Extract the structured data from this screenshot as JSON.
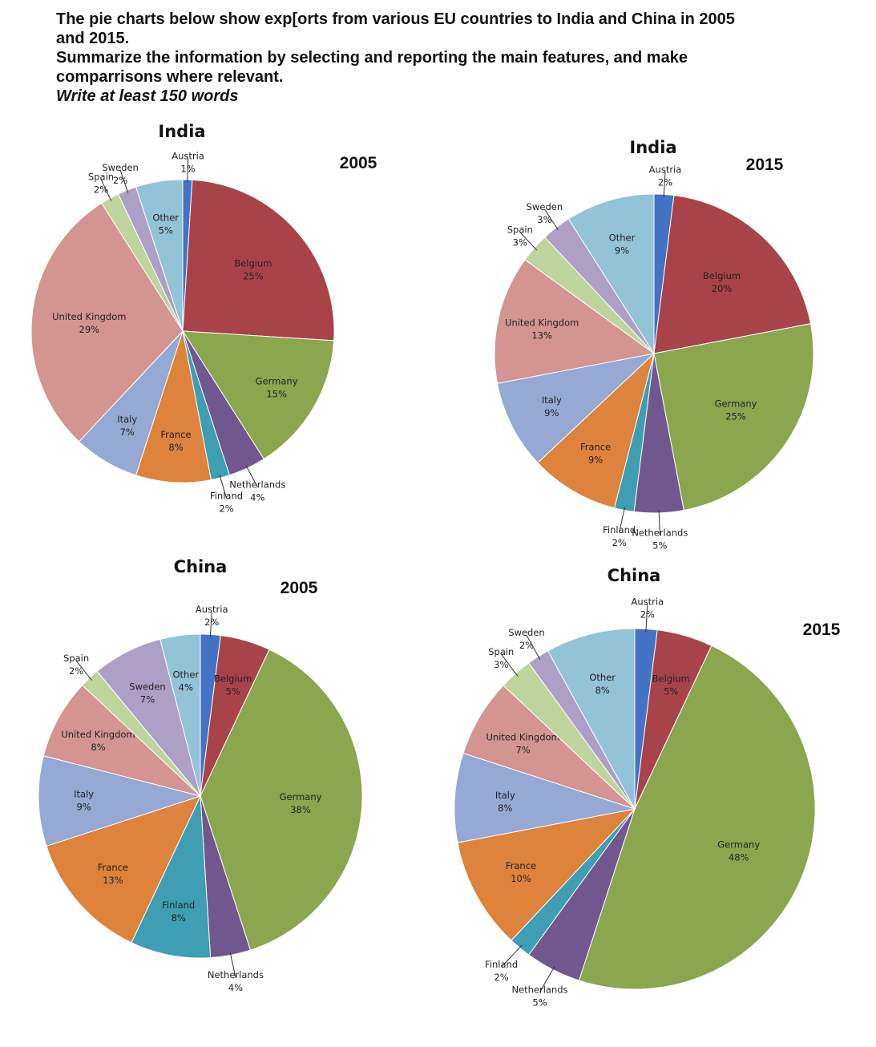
{
  "prompt": {
    "line1": "The pie charts below show exp[orts from various EU countries to India and China in 2005",
    "line2": "and 2015.",
    "line3": "Summarize the information by selecting and reporting the main features, and make",
    "line4": "comparrisons where relevant.",
    "line5": "Write at least 150 words"
  },
  "colors": {
    "Austria": "#4472C4",
    "Belgium": "#A9434A",
    "Germany": "#8BA64F",
    "Netherlands": "#71578F",
    "Finland": "#3F9DB4",
    "France": "#DD833C",
    "Italy": "#95A9D4",
    "United Kingdom": "#D49492",
    "Spain": "#BFD49D",
    "Sweden": "#AE9FC7",
    "Other": "#93C3D6"
  },
  "chart_data": [
    {
      "type": "pie",
      "title": "India",
      "year": "2005",
      "slices": [
        {
          "label": "Austria",
          "value": 1,
          "text": "1%"
        },
        {
          "label": "Belgium",
          "value": 25,
          "text": "25%"
        },
        {
          "label": "Germany",
          "value": 15,
          "text": "15%"
        },
        {
          "label": "Netherlands",
          "value": 4,
          "text": "4%"
        },
        {
          "label": "Finland",
          "value": 2,
          "text": "2%"
        },
        {
          "label": "France",
          "value": 8,
          "text": "8%"
        },
        {
          "label": "Italy",
          "value": 7,
          "text": "7%"
        },
        {
          "label": "United Kingdom",
          "value": 29,
          "text": "29%"
        },
        {
          "label": "Spain",
          "value": 2,
          "text": "2%"
        },
        {
          "label": "Sweden",
          "value": 2,
          "text": "2%"
        },
        {
          "label": "Other",
          "value": 5,
          "text": "5%"
        }
      ]
    },
    {
      "type": "pie",
      "title": "India",
      "year": "2015",
      "slices": [
        {
          "label": "Austria",
          "value": 2,
          "text": "2%"
        },
        {
          "label": "Belgium",
          "value": 20,
          "text": "20%"
        },
        {
          "label": "Germany",
          "value": 25,
          "text": "25%"
        },
        {
          "label": "Netherlands",
          "value": 5,
          "text": "5%"
        },
        {
          "label": "Finland",
          "value": 2,
          "text": "2%"
        },
        {
          "label": "France",
          "value": 9,
          "text": "9%"
        },
        {
          "label": "Italy",
          "value": 9,
          "text": "9%"
        },
        {
          "label": "United Kingdom",
          "value": 13,
          "text": "13%"
        },
        {
          "label": "Spain",
          "value": 3,
          "text": "3%"
        },
        {
          "label": "Sweden",
          "value": 3,
          "text": "3%"
        },
        {
          "label": "Other",
          "value": 9,
          "text": "9%"
        }
      ]
    },
    {
      "type": "pie",
      "title": "China",
      "year": "2005",
      "slices": [
        {
          "label": "Austria",
          "value": 2,
          "text": "2%"
        },
        {
          "label": "Belgium",
          "value": 5,
          "text": "5%"
        },
        {
          "label": "Germany",
          "value": 38,
          "text": "38%"
        },
        {
          "label": "Netherlands",
          "value": 4,
          "text": "4%"
        },
        {
          "label": "Finland",
          "value": 8,
          "text": "8%"
        },
        {
          "label": "France",
          "value": 13,
          "text": "13%"
        },
        {
          "label": "Italy",
          "value": 9,
          "text": "9%"
        },
        {
          "label": "United Kingdom",
          "value": 8,
          "text": "8%"
        },
        {
          "label": "Spain",
          "value": 2,
          "text": "2%"
        },
        {
          "label": "Sweden",
          "value": 7,
          "text": "7%"
        },
        {
          "label": "Other",
          "value": 4,
          "text": "4%"
        }
      ]
    },
    {
      "type": "pie",
      "title": "China",
      "year": "2015",
      "slices": [
        {
          "label": "Austria",
          "value": 2,
          "text": "2%"
        },
        {
          "label": "Belgium",
          "value": 5,
          "text": "5%"
        },
        {
          "label": "Germany",
          "value": 48,
          "text": "48%"
        },
        {
          "label": "Netherlands",
          "value": 5,
          "text": "5%"
        },
        {
          "label": "Finland",
          "value": 2,
          "text": "2%"
        },
        {
          "label": "France",
          "value": 10,
          "text": "10%"
        },
        {
          "label": "Italy",
          "value": 8,
          "text": "8%"
        },
        {
          "label": "United Kingdom",
          "value": 7,
          "text": "7%"
        },
        {
          "label": "Spain",
          "value": 3,
          "text": "3%"
        },
        {
          "label": "Sweden",
          "value": 2,
          "text": "2%"
        },
        {
          "label": "Other",
          "value": 8,
          "text": "8%"
        }
      ]
    }
  ]
}
